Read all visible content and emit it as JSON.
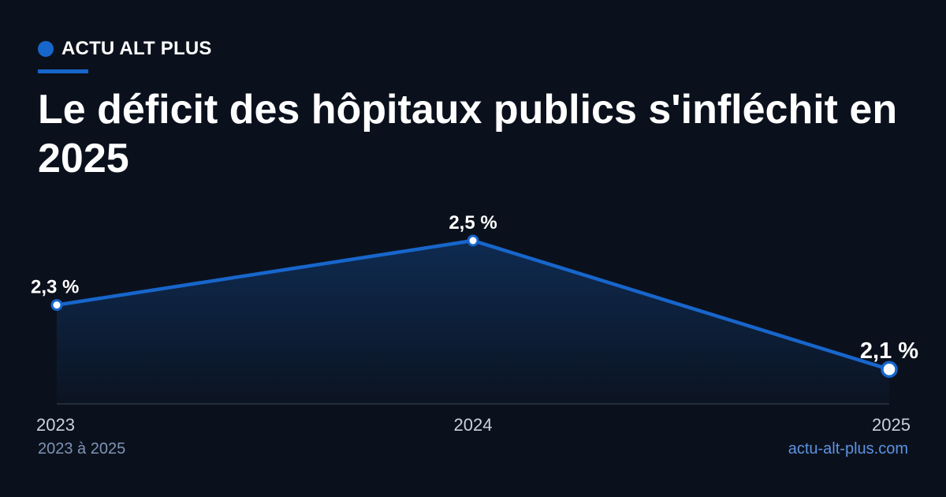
{
  "brand": {
    "name": "ACTU ALT PLUS",
    "accent_color": "#1766cc"
  },
  "headline": "Le déficit des hôpitaux publics s'infléchit en 2025",
  "chart_data": {
    "type": "area",
    "title": "",
    "xlabel": "",
    "ylabel": "",
    "categories": [
      "2023",
      "2024",
      "2025"
    ],
    "values": [
      2.3,
      2.5,
      2.1
    ],
    "value_labels": [
      "2,3 %",
      "2,5 %",
      "2,1 %"
    ],
    "line_color": "#1766cc",
    "highlight_last": true,
    "grid": false
  },
  "footer": {
    "period": "2023 à 2025",
    "source": "actu-alt-plus.com"
  }
}
